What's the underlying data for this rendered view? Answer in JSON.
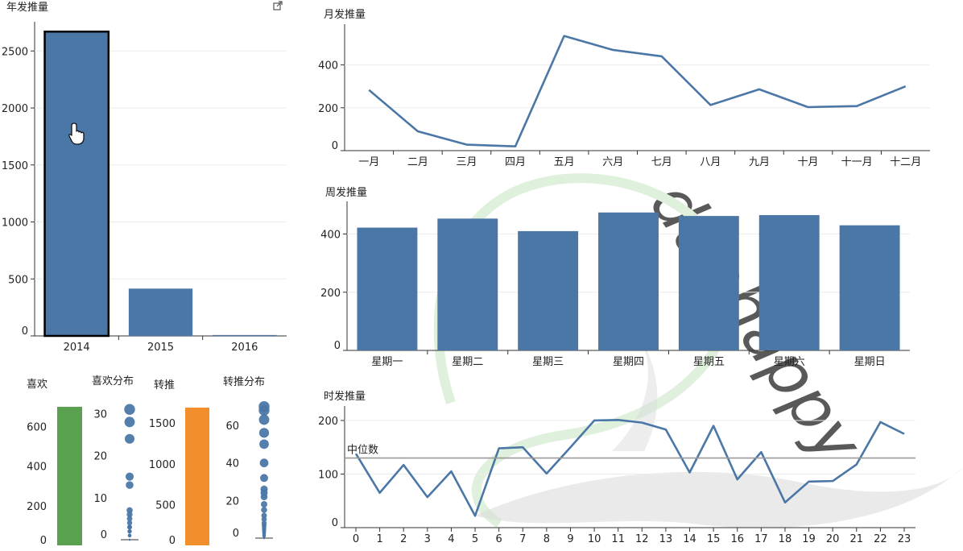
{
  "colors": {
    "bar": "#4b77a7",
    "likes": "#5aa14f",
    "retweets": "#f28e2c",
    "line": "#4b77a7",
    "median": "#999999",
    "watermark": "#dcdcdc",
    "watermark_green": "#dff0dc"
  },
  "icons": {
    "external_link": "external-link-icon",
    "cursor": "hand-cursor-icon"
  },
  "watermark_text": "duohappy",
  "chart_data": [
    {
      "id": "yearly",
      "type": "bar",
      "title": "年发推量",
      "categories": [
        "2014",
        "2015",
        "2016"
      ],
      "values": [
        2670,
        415,
        8
      ],
      "ylim": [
        0,
        2700
      ],
      "yticks": [
        0,
        500,
        1000,
        1500,
        2000,
        2500
      ],
      "grid": true,
      "highlighted": "2014"
    },
    {
      "id": "monthly",
      "type": "line",
      "title": "月发推量",
      "categories": [
        "一月",
        "二月",
        "三月",
        "四月",
        "五月",
        "六月",
        "七月",
        "八月",
        "九月",
        "十月",
        "十一月",
        "十二月"
      ],
      "values": [
        283,
        90,
        28,
        20,
        535,
        470,
        440,
        213,
        286,
        203,
        208,
        300
      ],
      "ylim": [
        0,
        560
      ],
      "yticks": [
        0,
        200,
        400
      ],
      "grid": true
    },
    {
      "id": "weekly",
      "type": "bar",
      "title": "周发推量",
      "categories": [
        "星期一",
        "星期二",
        "星期三",
        "星期四",
        "星期五",
        "星期六",
        "星期日"
      ],
      "values": [
        422,
        453,
        410,
        474,
        462,
        465,
        430
      ],
      "ylim": [
        0,
        490
      ],
      "yticks": [
        0,
        200,
        400
      ],
      "grid": true
    },
    {
      "id": "hourly",
      "type": "line",
      "title": "时发推量",
      "categories": [
        "0",
        "1",
        "2",
        "3",
        "4",
        "5",
        "6",
        "7",
        "8",
        "9",
        "10",
        "11",
        "12",
        "13",
        "14",
        "15",
        "16",
        "17",
        "18",
        "19",
        "20",
        "21",
        "22",
        "23"
      ],
      "values": [
        138,
        65,
        117,
        57,
        105,
        22,
        148,
        150,
        101,
        150,
        200,
        201,
        196,
        183,
        103,
        190,
        90,
        141,
        47,
        86,
        87,
        118,
        197,
        175
      ],
      "ylim": [
        0,
        215
      ],
      "yticks": [
        0,
        100,
        200
      ],
      "median": 130,
      "median_label": "中位数",
      "grid": true
    },
    {
      "id": "likes",
      "type": "bar",
      "title": "喜欢",
      "values": [
        700
      ],
      "ylim": [
        0,
        700
      ],
      "yticks": [
        0,
        200,
        400,
        600
      ]
    },
    {
      "id": "likes_dist",
      "type": "scatter",
      "title": "喜欢分布",
      "values": [
        0,
        0,
        0,
        0,
        1,
        1,
        1,
        1,
        2,
        2,
        2,
        3,
        3,
        4,
        5,
        6,
        7,
        13,
        15,
        24,
        28,
        31
      ],
      "ylim": [
        0,
        32
      ],
      "yticks": [
        0,
        10,
        20,
        30
      ]
    },
    {
      "id": "retweets",
      "type": "bar",
      "title": "转推",
      "values": [
        1690
      ],
      "ylim": [
        0,
        1690
      ],
      "yticks": [
        0,
        500,
        1000,
        1500
      ]
    },
    {
      "id": "retweets_dist",
      "type": "scatter",
      "title": "转推分布",
      "values": [
        0,
        0,
        0,
        0,
        0,
        1,
        1,
        1,
        2,
        2,
        3,
        3,
        4,
        5,
        6,
        7,
        8,
        10,
        12,
        15,
        18,
        22,
        24,
        26,
        32,
        40,
        50,
        56,
        63,
        68,
        70
      ],
      "ylim": [
        0,
        72
      ],
      "yticks": [
        0,
        20,
        40,
        60
      ]
    }
  ]
}
